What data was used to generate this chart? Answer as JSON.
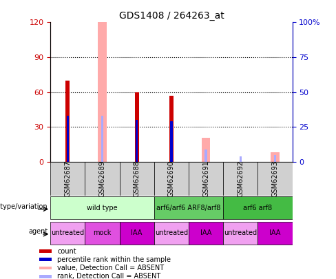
{
  "title": "GDS1408 / 264263_at",
  "samples": [
    "GSM62687",
    "GSM62689",
    "GSM62688",
    "GSM62690",
    "GSM62691",
    "GSM62692",
    "GSM62693"
  ],
  "count": [
    70,
    0,
    60,
    57,
    0,
    0,
    0
  ],
  "percentile_rank": [
    33,
    0,
    30,
    29,
    0,
    0,
    0
  ],
  "count_absent": [
    0,
    100,
    0,
    0,
    17,
    0,
    7
  ],
  "rank_absent": [
    0,
    33,
    0,
    0,
    9,
    4,
    5
  ],
  "ylim_left": [
    0,
    120
  ],
  "ylim_right": [
    0,
    100
  ],
  "yticks_left": [
    0,
    30,
    60,
    90,
    120
  ],
  "ytick_labels_left": [
    "0",
    "30",
    "60",
    "90",
    "120"
  ],
  "yticks_right": [
    0,
    25,
    50,
    75,
    100
  ],
  "ytick_labels_right": [
    "0",
    "25",
    "50",
    "75",
    "100%"
  ],
  "color_count": "#cc0000",
  "color_rank": "#0000cc",
  "color_count_absent": "#ffaaaa",
  "color_rank_absent": "#aaaaff",
  "genotype_groups": [
    {
      "label": "wild type",
      "start": 0,
      "end": 3,
      "color": "#ccffcc"
    },
    {
      "label": "arf6/arf6 ARF8/arf8",
      "start": 3,
      "end": 5,
      "color": "#66cc66"
    },
    {
      "label": "arf6 arf8",
      "start": 5,
      "end": 7,
      "color": "#44bb44"
    }
  ],
  "agent_groups": [
    {
      "label": "untreated",
      "start": 0,
      "end": 1,
      "color": "#f0a0f0"
    },
    {
      "label": "mock",
      "start": 1,
      "end": 2,
      "color": "#e050e0"
    },
    {
      "label": "IAA",
      "start": 2,
      "end": 3,
      "color": "#cc00cc"
    },
    {
      "label": "untreated",
      "start": 3,
      "end": 4,
      "color": "#f0a0f0"
    },
    {
      "label": "IAA",
      "start": 4,
      "end": 5,
      "color": "#cc00cc"
    },
    {
      "label": "untreated",
      "start": 5,
      "end": 6,
      "color": "#f0a0f0"
    },
    {
      "label": "IAA",
      "start": 6,
      "end": 7,
      "color": "#cc00cc"
    }
  ],
  "legend_labels": [
    "count",
    "percentile rank within the sample",
    "value, Detection Call = ABSENT",
    "rank, Detection Call = ABSENT"
  ],
  "legend_colors": [
    "#cc0000",
    "#0000cc",
    "#ffaaaa",
    "#aaaaff"
  ]
}
